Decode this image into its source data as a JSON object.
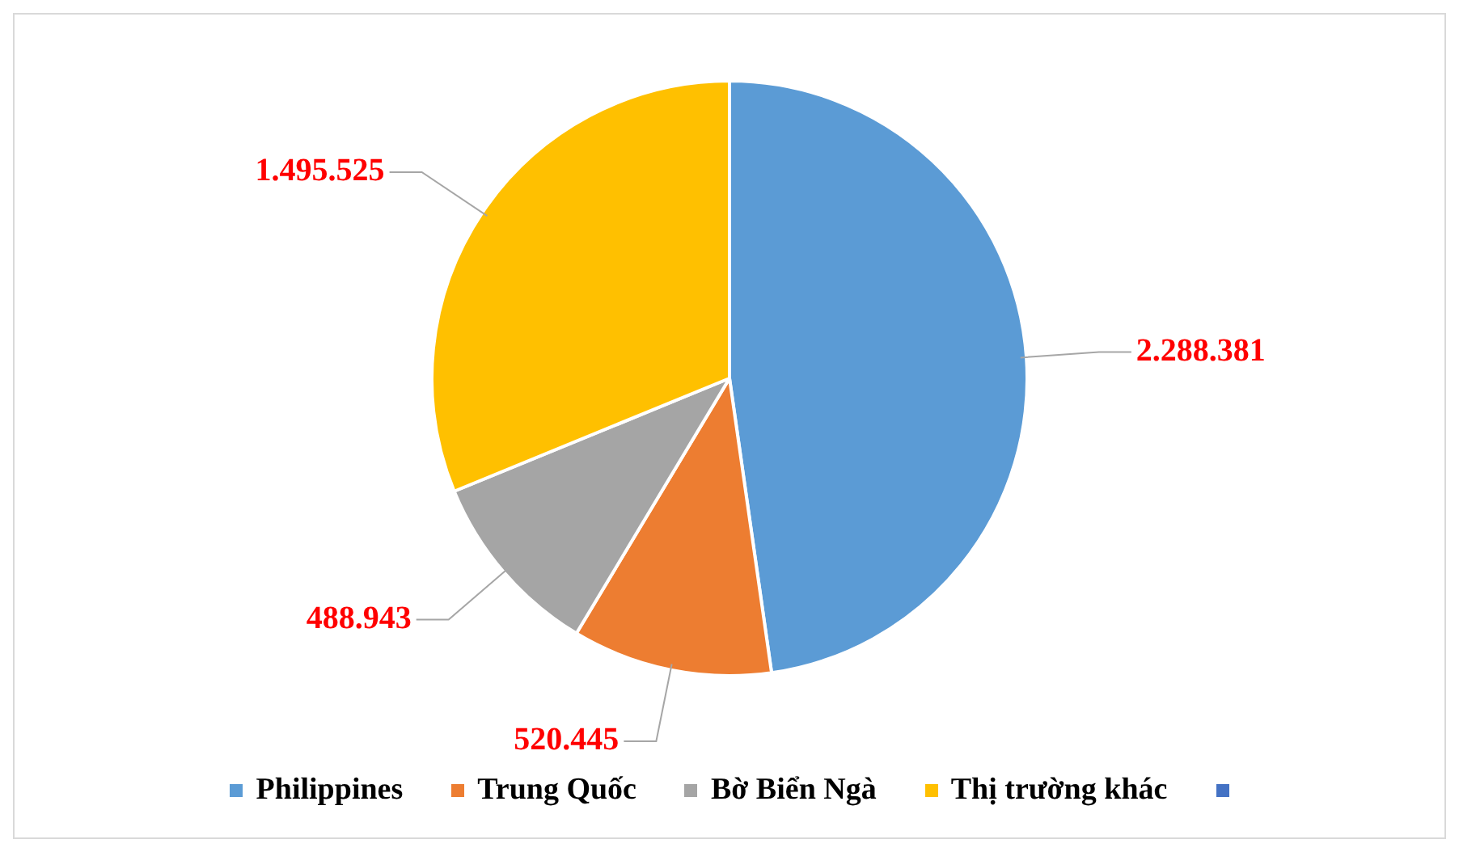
{
  "chart_data": {
    "type": "pie",
    "categories": [
      "Philippines",
      "Trung Quốc",
      "Bờ Biển Ngà",
      "Thị trường khác"
    ],
    "values": [
      2288381,
      520445,
      488943,
      1495525
    ],
    "value_labels": [
      "2.288.381",
      "520.445",
      "488.943",
      "1.495.525"
    ],
    "colors": [
      "#5b9bd5",
      "#ed7d31",
      "#a5a5a5",
      "#ffc000"
    ],
    "legend": "bottom"
  }
}
